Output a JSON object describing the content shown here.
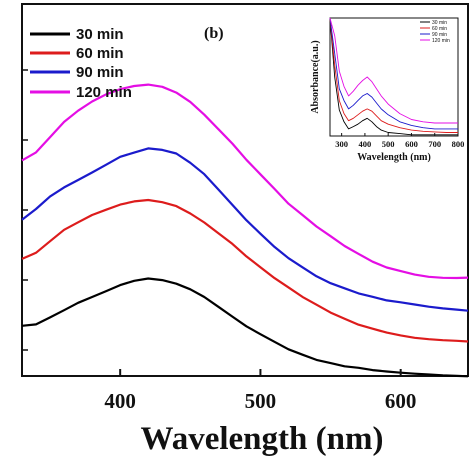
{
  "chart_data": [
    {
      "type": "line",
      "panel_label": "(b)",
      "xlabel": "Wavelength (nm)",
      "ylabel": "",
      "xlim": [
        330,
        648
      ],
      "ylim": [
        0,
        1
      ],
      "xticks": [
        400,
        500,
        600
      ],
      "yticks_labeled": false,
      "legend_position": "top-left",
      "series": [
        {
          "name": "30 min",
          "color": "#000000",
          "x": [
            330,
            340,
            350,
            360,
            370,
            380,
            390,
            400,
            410,
            420,
            430,
            440,
            450,
            460,
            470,
            480,
            490,
            500,
            510,
            520,
            530,
            540,
            550,
            560,
            570,
            580,
            590,
            600,
            610,
            620,
            630,
            640,
            648
          ],
          "y": [
            0.135,
            0.14,
            0.16,
            0.18,
            0.2,
            0.215,
            0.23,
            0.245,
            0.255,
            0.26,
            0.255,
            0.245,
            0.23,
            0.21,
            0.185,
            0.16,
            0.135,
            0.115,
            0.095,
            0.075,
            0.06,
            0.045,
            0.035,
            0.025,
            0.02,
            0.013,
            0.009,
            0.006,
            0.004,
            0.003,
            0.002,
            0.002,
            0.002
          ]
        },
        {
          "name": "60 min",
          "color": "#dd1c1c",
          "x": [
            330,
            340,
            350,
            360,
            370,
            380,
            390,
            400,
            410,
            420,
            430,
            440,
            450,
            460,
            470,
            480,
            490,
            500,
            510,
            520,
            530,
            540,
            550,
            560,
            570,
            580,
            590,
            600,
            610,
            620,
            630,
            640,
            648
          ],
          "y": [
            0.315,
            0.33,
            0.36,
            0.39,
            0.41,
            0.43,
            0.445,
            0.46,
            0.47,
            0.475,
            0.47,
            0.46,
            0.44,
            0.415,
            0.385,
            0.355,
            0.32,
            0.29,
            0.26,
            0.235,
            0.21,
            0.19,
            0.17,
            0.155,
            0.14,
            0.13,
            0.12,
            0.112,
            0.105,
            0.1,
            0.096,
            0.093,
            0.09
          ]
        },
        {
          "name": "90 min",
          "color": "#1b1bcc",
          "x": [
            330,
            340,
            350,
            360,
            370,
            380,
            390,
            400,
            410,
            420,
            430,
            440,
            450,
            460,
            470,
            480,
            490,
            500,
            510,
            520,
            530,
            540,
            550,
            560,
            570,
            580,
            590,
            600,
            610,
            620,
            630,
            640,
            648
          ],
          "y": [
            0.42,
            0.45,
            0.485,
            0.51,
            0.53,
            0.55,
            0.57,
            0.59,
            0.6,
            0.61,
            0.605,
            0.595,
            0.57,
            0.54,
            0.5,
            0.46,
            0.42,
            0.385,
            0.35,
            0.32,
            0.295,
            0.27,
            0.25,
            0.235,
            0.22,
            0.21,
            0.2,
            0.195,
            0.19,
            0.185,
            0.182,
            0.18,
            0.178
          ]
        },
        {
          "name": "120 min",
          "color": "#e40ee4",
          "x": [
            330,
            340,
            350,
            360,
            370,
            380,
            390,
            400,
            410,
            420,
            430,
            440,
            450,
            460,
            470,
            480,
            490,
            500,
            510,
            520,
            530,
            540,
            550,
            560,
            570,
            580,
            590,
            600,
            610,
            620,
            630,
            640,
            648
          ],
          "y": [
            0.58,
            0.6,
            0.64,
            0.68,
            0.71,
            0.735,
            0.755,
            0.77,
            0.78,
            0.785,
            0.78,
            0.765,
            0.74,
            0.705,
            0.665,
            0.625,
            0.58,
            0.54,
            0.5,
            0.46,
            0.43,
            0.4,
            0.375,
            0.35,
            0.33,
            0.31,
            0.295,
            0.285,
            0.275,
            0.268,
            0.264,
            0.262,
            0.262
          ]
        }
      ]
    },
    {
      "type": "line",
      "role": "inset",
      "xlabel": "Wavelength (nm)",
      "ylabel": "Absorbance(a.u.)",
      "xlim": [
        250,
        800
      ],
      "ylim": [
        0,
        1
      ],
      "xticks": [
        300,
        400,
        500,
        600,
        700,
        800
      ],
      "legend_position": "top-right",
      "series": [
        {
          "name": "30 min",
          "color": "#000000",
          "x": [
            250,
            270,
            290,
            310,
            330,
            350,
            370,
            390,
            410,
            430,
            450,
            470,
            500,
            550,
            600,
            650,
            700,
            750,
            800
          ],
          "y": [
            1.0,
            0.5,
            0.22,
            0.12,
            0.06,
            0.08,
            0.1,
            0.13,
            0.15,
            0.12,
            0.08,
            0.05,
            0.03,
            0.02,
            0.01,
            0.01,
            0.01,
            0.01,
            0.01
          ]
        },
        {
          "name": "60 min",
          "color": "#dd1c1c",
          "x": [
            250,
            270,
            290,
            310,
            330,
            350,
            370,
            390,
            410,
            430,
            450,
            470,
            500,
            550,
            600,
            650,
            700,
            750,
            800
          ],
          "y": [
            1.0,
            0.6,
            0.3,
            0.19,
            0.13,
            0.15,
            0.18,
            0.21,
            0.23,
            0.21,
            0.17,
            0.13,
            0.1,
            0.07,
            0.05,
            0.04,
            0.035,
            0.03,
            0.03
          ]
        },
        {
          "name": "90 min",
          "color": "#1b1bcc",
          "x": [
            250,
            270,
            290,
            310,
            330,
            350,
            370,
            390,
            410,
            430,
            450,
            470,
            500,
            550,
            600,
            650,
            700,
            750,
            800
          ],
          "y": [
            1.0,
            0.7,
            0.4,
            0.3,
            0.23,
            0.26,
            0.3,
            0.34,
            0.36,
            0.33,
            0.28,
            0.23,
            0.18,
            0.12,
            0.09,
            0.07,
            0.06,
            0.06,
            0.06
          ]
        },
        {
          "name": "120 min",
          "color": "#e40ee4",
          "x": [
            250,
            270,
            290,
            310,
            330,
            350,
            370,
            390,
            410,
            430,
            450,
            470,
            500,
            550,
            600,
            650,
            700,
            750,
            800
          ],
          "y": [
            1.0,
            0.85,
            0.55,
            0.42,
            0.34,
            0.38,
            0.43,
            0.47,
            0.5,
            0.46,
            0.4,
            0.34,
            0.27,
            0.19,
            0.14,
            0.12,
            0.11,
            0.11,
            0.11
          ]
        }
      ]
    }
  ]
}
